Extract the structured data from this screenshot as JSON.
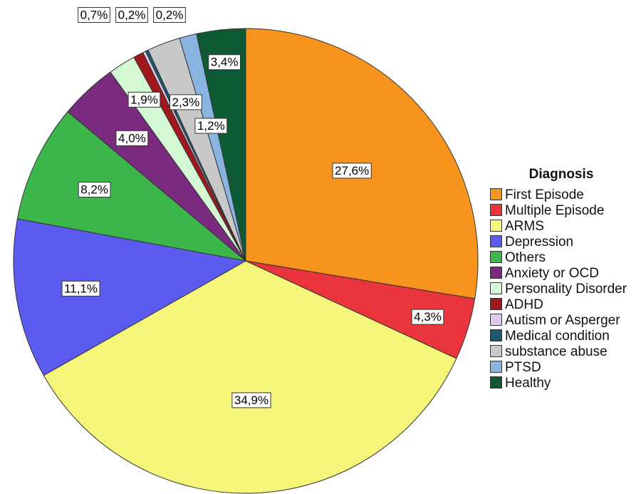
{
  "chart_data": {
    "type": "pie",
    "legend_title": "Diagnosis",
    "categories": [
      "First Episode",
      "Multiple Episode",
      "ARMS",
      "Depression",
      "Others",
      "Anxiety or OCD",
      "Personality Disorder",
      "ADHD",
      "Autism or Asperger",
      "Medical condition",
      "substance abuse",
      "PTSD",
      "Healthy"
    ],
    "values": [
      27.6,
      4.3,
      34.9,
      11.1,
      8.2,
      4.0,
      1.9,
      0.7,
      0.2,
      0.2,
      2.3,
      1.2,
      3.4
    ],
    "value_labels": [
      "27,6%",
      "4,3%",
      "34,9%",
      "11,1%",
      "8,2%",
      "4,0%",
      "1,9%",
      "0,7%",
      "0,2%",
      "0,2%",
      "2,3%",
      "1,2%",
      "3,4%"
    ],
    "colors": [
      "#f7941d",
      "#e8343a",
      "#f5f57a",
      "#5b5bef",
      "#3cb54a",
      "#7a2a7f",
      "#d4f7d4",
      "#a0171c",
      "#e0c8ee",
      "#1a5a6e",
      "#c8c8c8",
      "#8ab4e0",
      "#0d5a35"
    ],
    "legend": "right"
  }
}
